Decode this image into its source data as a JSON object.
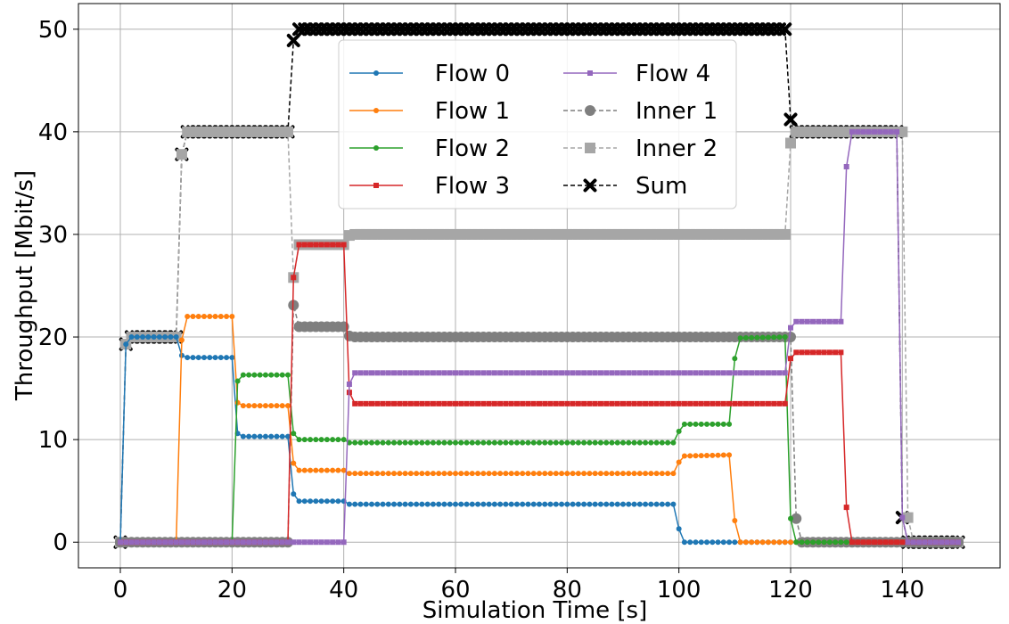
{
  "chart_data": {
    "type": "line",
    "title": "",
    "xlabel": "Simulation Time [s]",
    "ylabel": "Throughput [Mbit/s]",
    "xlim": [
      -7.5,
      157.5
    ],
    "ylim": [
      -2.5,
      52.5
    ],
    "xticks": [
      0,
      20,
      40,
      60,
      80,
      100,
      120,
      140
    ],
    "yticks": [
      0,
      10,
      20,
      30,
      40,
      50
    ],
    "grid": true,
    "legend": {
      "placement": "upper center",
      "columns": 2
    },
    "series": [
      {
        "name": "Flow 0",
        "color": "#1f77b4",
        "marker": "circle",
        "dashed": false,
        "points": [
          [
            0,
            0
          ],
          [
            1,
            19.3
          ],
          [
            2,
            20
          ],
          [
            10,
            20
          ],
          [
            11,
            18.2
          ],
          [
            12,
            18
          ],
          [
            20,
            18
          ],
          [
            21,
            10.6
          ],
          [
            22,
            10.3
          ],
          [
            30,
            10.3
          ],
          [
            31,
            4.7
          ],
          [
            32,
            4
          ],
          [
            40,
            4
          ],
          [
            41,
            3.7
          ],
          [
            99,
            3.7
          ],
          [
            100,
            1.3
          ],
          [
            101,
            0
          ],
          [
            150,
            0
          ]
        ]
      },
      {
        "name": "Flow 1",
        "color": "#ff7f0e",
        "marker": "circle",
        "dashed": false,
        "points": [
          [
            0,
            0
          ],
          [
            10,
            0
          ],
          [
            11,
            19.7
          ],
          [
            12,
            22
          ],
          [
            20,
            22
          ],
          [
            21,
            13.6
          ],
          [
            22,
            13.3
          ],
          [
            30,
            13.3
          ],
          [
            31,
            7.7
          ],
          [
            32,
            7
          ],
          [
            40,
            7
          ],
          [
            41,
            6.7
          ],
          [
            99,
            6.7
          ],
          [
            100,
            7.8
          ],
          [
            101,
            8.4
          ],
          [
            109,
            8.5
          ],
          [
            110,
            2.1
          ],
          [
            111,
            0
          ],
          [
            150,
            0
          ]
        ]
      },
      {
        "name": "Flow 2",
        "color": "#2ca02c",
        "marker": "circle",
        "dashed": false,
        "points": [
          [
            0,
            0
          ],
          [
            20,
            0
          ],
          [
            21,
            15.7
          ],
          [
            22,
            16.3
          ],
          [
            30,
            16.3
          ],
          [
            31,
            10.6
          ],
          [
            32,
            10
          ],
          [
            40,
            10
          ],
          [
            41,
            9.7
          ],
          [
            99,
            9.7
          ],
          [
            100,
            10.8
          ],
          [
            101,
            11.5
          ],
          [
            109,
            11.5
          ],
          [
            110,
            17.9
          ],
          [
            111,
            19.9
          ],
          [
            119,
            20
          ],
          [
            120,
            2.3
          ],
          [
            121,
            0
          ],
          [
            150,
            0
          ]
        ]
      },
      {
        "name": "Flow 3",
        "color": "#d62728",
        "marker": "square",
        "dashed": false,
        "points": [
          [
            0,
            0
          ],
          [
            30,
            0
          ],
          [
            31,
            25.8
          ],
          [
            32,
            29
          ],
          [
            40,
            29
          ],
          [
            41,
            14.6
          ],
          [
            42,
            13.5
          ],
          [
            119,
            13.5
          ],
          [
            120,
            17.9
          ],
          [
            121,
            18.5
          ],
          [
            129,
            18.5
          ],
          [
            130,
            3.4
          ],
          [
            131,
            0
          ],
          [
            150,
            0
          ]
        ]
      },
      {
        "name": "Flow 4",
        "color": "#9467bd",
        "marker": "square",
        "dashed": false,
        "points": [
          [
            0,
            0
          ],
          [
            40,
            0
          ],
          [
            41,
            15.4
          ],
          [
            42,
            16.5
          ],
          [
            119,
            16.5
          ],
          [
            120,
            20.9
          ],
          [
            121,
            21.5
          ],
          [
            129,
            21.5
          ],
          [
            130,
            36.6
          ],
          [
            131,
            40
          ],
          [
            139,
            40
          ],
          [
            140,
            2.4
          ],
          [
            141,
            0
          ],
          [
            150,
            0
          ]
        ]
      },
      {
        "name": "Inner 1",
        "color": "#7f7f7f",
        "marker": "circle",
        "dashed": true,
        "points": [
          [
            0,
            0
          ],
          [
            30,
            0
          ],
          [
            31,
            23.1
          ],
          [
            32,
            21
          ],
          [
            40,
            21
          ],
          [
            41,
            20.1
          ],
          [
            42,
            20
          ],
          [
            120,
            20
          ],
          [
            121,
            2.3
          ],
          [
            122,
            0
          ],
          [
            150,
            0
          ]
        ]
      },
      {
        "name": "Inner 2",
        "color": "#a6a6a6",
        "marker": "square",
        "dashed": true,
        "points": [
          [
            0,
            0
          ],
          [
            1,
            19.3
          ],
          [
            2,
            20
          ],
          [
            10,
            20
          ],
          [
            11,
            37.8
          ],
          [
            12,
            40
          ],
          [
            30,
            40
          ],
          [
            31,
            25.8
          ],
          [
            32,
            29
          ],
          [
            40,
            29
          ],
          [
            41,
            29.9
          ],
          [
            42,
            30
          ],
          [
            119,
            30
          ],
          [
            120,
            38.9
          ],
          [
            121,
            40
          ],
          [
            140,
            40
          ],
          [
            141,
            2.4
          ],
          [
            142,
            0
          ],
          [
            150,
            0
          ]
        ]
      },
      {
        "name": "Sum",
        "color": "#000000",
        "marker": "x",
        "dashed": true,
        "points": [
          [
            0,
            0
          ],
          [
            1,
            19.3
          ],
          [
            2,
            20
          ],
          [
            10,
            20
          ],
          [
            11,
            37.8
          ],
          [
            12,
            40
          ],
          [
            30,
            40
          ],
          [
            31,
            48.9
          ],
          [
            32,
            50
          ],
          [
            119,
            50
          ],
          [
            120,
            41.2
          ],
          [
            121,
            40
          ],
          [
            139,
            40
          ],
          [
            140,
            2.4
          ],
          [
            141,
            0
          ],
          [
            150,
            0
          ]
        ]
      }
    ]
  }
}
